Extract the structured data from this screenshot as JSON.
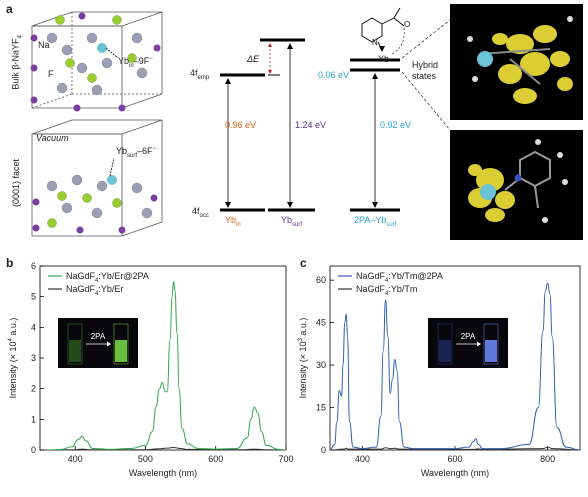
{
  "panel_a": {
    "letter": "a",
    "bulk_label": "Bulk β-NaYF",
    "bulk_sub": "4",
    "facet_label": "(0001) facet",
    "na_label": "Na",
    "f_label": "F",
    "yb_in_label": "Yb",
    "yb_in_sub": "in",
    "yb_in_suffix": "–9F",
    "yb_in_sup": "−",
    "vacuum_label": "Vacuum",
    "yb_surf_label": "Yb",
    "yb_surf_sub": "surf",
    "yb_surf_suffix": "–6F",
    "yb_surf_sup": "−",
    "f_emp": "4f",
    "f_emp_sub": "emp",
    "f_occ": "4f",
    "f_occ_sub": "occ",
    "delta_e": "ΔE",
    "e1": "0.96 eV",
    "e2": "1.24 eV",
    "e3": "0.06 eV",
    "e4": "0.92 eV",
    "lvl_yb_in": "Yb",
    "lvl_yb_in_sub": "in",
    "lvl_yb_surf": "Yb",
    "lvl_yb_surf_sub": "surf",
    "lvl_2pa": "2PA–Yb",
    "lvl_2pa_sub": "surf",
    "yb_mol": "Yb",
    "hybrid": "Hybrid",
    "states": "states",
    "n_atom": "N",
    "o_atom": "O",
    "colors": {
      "e1": "#e0601a",
      "e2": "#5b2d8e",
      "e4": "#29a3d6",
      "delta": "#c0282d"
    }
  },
  "chart_data": [
    {
      "type": "line",
      "panel": "b",
      "xlabel": "Wavelength (nm)",
      "ylabel": "Intensity (× 10",
      "ylabel_sup": "4",
      "ylabel_tail": " a.u.)",
      "xlim": [
        350,
        700
      ],
      "ylim": [
        0,
        6
      ],
      "x_ticks": [
        400,
        500,
        600,
        700
      ],
      "y_ticks": [
        0,
        1,
        2,
        3,
        4,
        5,
        6
      ],
      "legend_position": "top-left",
      "series": [
        {
          "name": "NaGdF4:Yb/Er@2PA",
          "name_main": "NaGdF",
          "name_sub": "4",
          "name_tail": ":Yb/Er@2PA",
          "color": "#2ca84a",
          "x": [
            360,
            380,
            395,
            405,
            410,
            415,
            425,
            450,
            480,
            500,
            510,
            515,
            520,
            524,
            528,
            531,
            535,
            538,
            540,
            542,
            545,
            548,
            552,
            560,
            575,
            600,
            630,
            645,
            650,
            655,
            660,
            665,
            672,
            690,
            700
          ],
          "y": [
            0,
            0.02,
            0.1,
            0.35,
            0.45,
            0.3,
            0.05,
            0.02,
            0.05,
            0.15,
            0.6,
            1.4,
            2.0,
            2.2,
            1.9,
            1.9,
            3.6,
            5.0,
            5.5,
            5.2,
            3.8,
            2.0,
            0.7,
            0.2,
            0.05,
            0.03,
            0.05,
            0.4,
            1.0,
            1.4,
            1.2,
            0.6,
            0.15,
            0.02,
            0
          ]
        },
        {
          "name": "NaGdF4:Yb/Er",
          "name_main": "NaGdF",
          "name_sub": "4",
          "name_tail": ":Yb/Er",
          "color": "#333333",
          "x": [
            360,
            400,
            410,
            420,
            500,
            520,
            530,
            540,
            550,
            560,
            640,
            655,
            670,
            700
          ],
          "y": [
            0,
            0.01,
            0.03,
            0.01,
            0.01,
            0.04,
            0.06,
            0.08,
            0.05,
            0.02,
            0.01,
            0.03,
            0.01,
            0
          ]
        }
      ],
      "inset_label": "2PA"
    },
    {
      "type": "line",
      "panel": "c",
      "xlabel": "Wavelength (nm)",
      "ylabel": "Intensity (× 10",
      "ylabel_sup": "3",
      "ylabel_tail": " a.u.)",
      "xlim": [
        330,
        870
      ],
      "ylim": [
        0,
        65
      ],
      "x_ticks": [
        400,
        600,
        800
      ],
      "y_ticks": [
        0,
        15,
        30,
        45,
        60
      ],
      "legend_position": "top-left",
      "series": [
        {
          "name": "NaGdF4:Yb/Tm@2PA",
          "name_main": "NaGdF",
          "name_sub": "4",
          "name_tail": ":Yb/Tm@2PA",
          "color": "#2e5fae",
          "x": [
            330,
            340,
            345,
            350,
            355,
            358,
            362,
            365,
            368,
            372,
            380,
            400,
            430,
            440,
            445,
            450,
            455,
            460,
            465,
            470,
            475,
            480,
            490,
            510,
            540,
            600,
            630,
            640,
            645,
            650,
            660,
            700,
            760,
            780,
            790,
            795,
            800,
            805,
            810,
            820,
            840,
            870
          ],
          "y": [
            0,
            2,
            10,
            21,
            19,
            30,
            45,
            48,
            40,
            10,
            1,
            0.5,
            1,
            12,
            35,
            53,
            40,
            20,
            25,
            32,
            28,
            10,
            1,
            0.5,
            0.5,
            0.5,
            1,
            3,
            4,
            2,
            0.5,
            0.5,
            2,
            15,
            42,
            56,
            59,
            55,
            40,
            8,
            1,
            0
          ]
        },
        {
          "name": "NaGdF4:Yb/Tm",
          "name_main": "NaGdF",
          "name_sub": "4",
          "name_tail": ":Yb/Tm",
          "color": "#333333",
          "x": [
            330,
            360,
            365,
            370,
            440,
            450,
            460,
            470,
            480,
            640,
            650,
            660,
            790,
            800,
            810,
            870
          ],
          "y": [
            0,
            0.3,
            0.6,
            0.3,
            0.3,
            0.8,
            0.5,
            0.6,
            0.3,
            0.2,
            0.4,
            0.2,
            0.5,
            1.0,
            0.5,
            0
          ]
        }
      ],
      "inset_label": "2PA"
    }
  ]
}
